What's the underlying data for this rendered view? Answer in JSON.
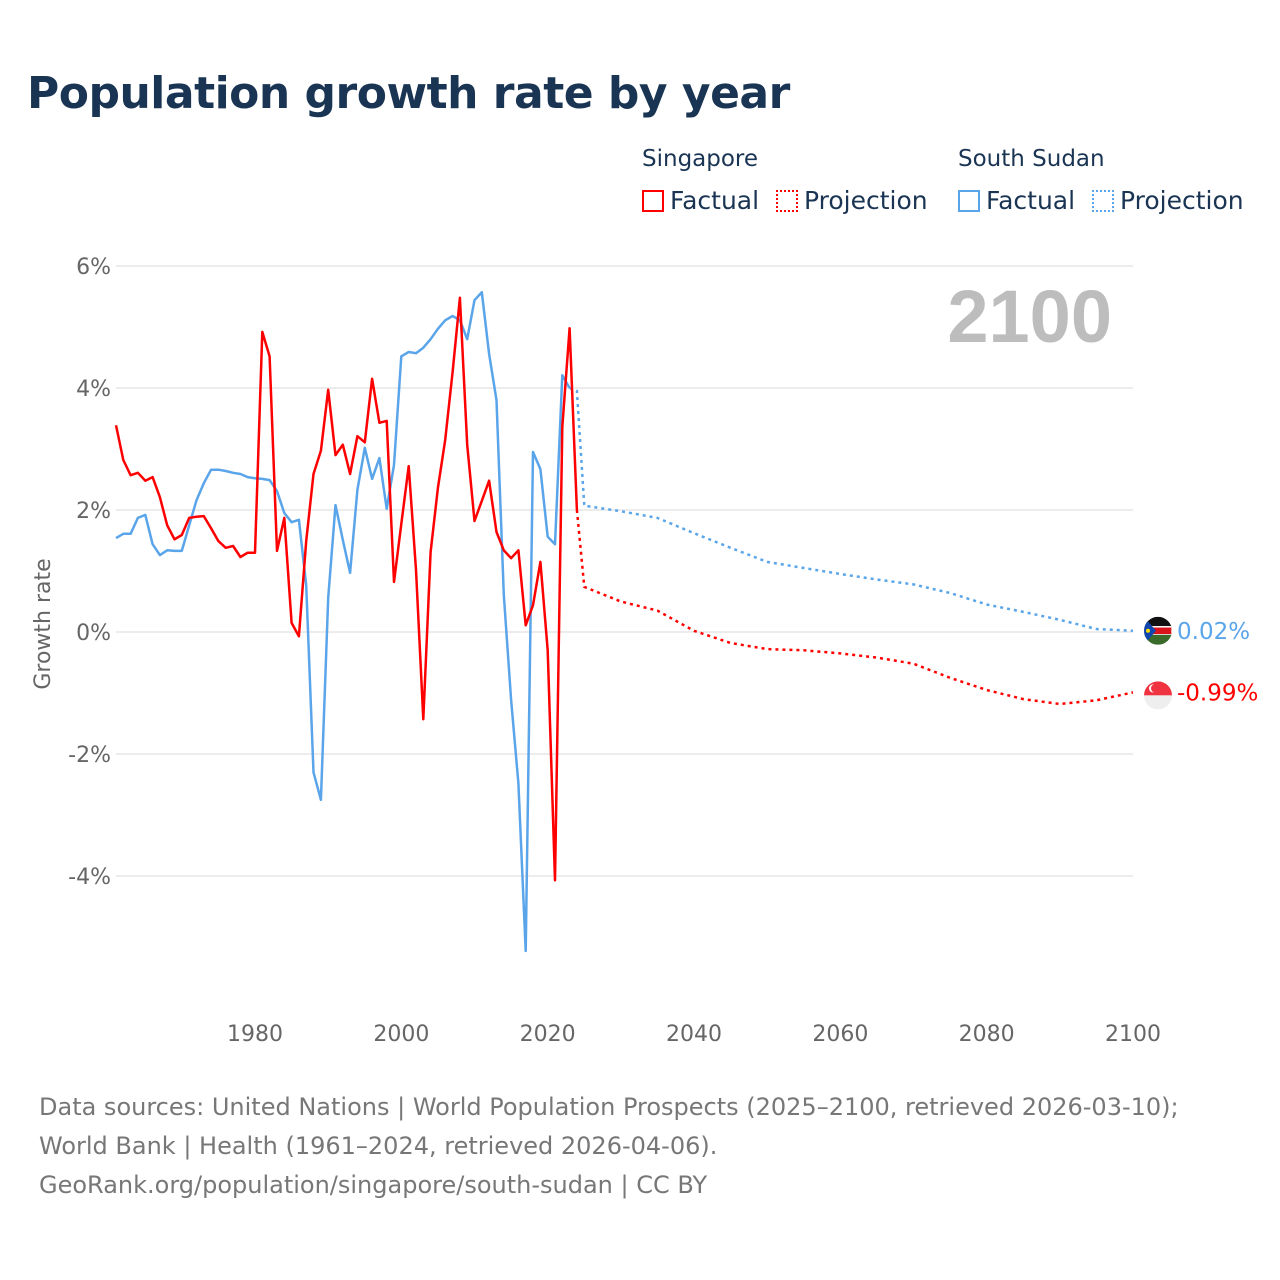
{
  "title": "Population growth rate by year",
  "legend": {
    "groups": [
      {
        "name": "Singapore",
        "color": "#ff0000",
        "factual": "Factual",
        "projection": "Projection"
      },
      {
        "name": "South Sudan",
        "color": "#5aa5ea",
        "factual": "Factual",
        "projection": "Projection"
      }
    ]
  },
  "year_display": "2100",
  "footer": {
    "sources": "Data sources: United Nations | World Population Prospects (2025–2100, retrieved 2026-03-10); World Bank | Health (1961–2024, retrieved 2026-04-06).",
    "link": "GeoRank.org/population/singapore/south-sudan | CC BY"
  },
  "chart_data": {
    "type": "line",
    "title": "Population growth rate by year",
    "xlabel": "",
    "ylabel": "Growth rate",
    "xlim": [
      1961,
      2100
    ],
    "ylim": [
      -5.9,
      6
    ],
    "yticks": [
      6,
      4,
      2,
      0,
      -2,
      -4
    ],
    "ytick_labels": [
      "6%",
      "4%",
      "2%",
      "0%",
      "-2%",
      "-4%"
    ],
    "xticks": [
      1980,
      2000,
      2020,
      2040,
      2060,
      2080,
      2100
    ],
    "xtick_labels": [
      "1980",
      "2000",
      "2020",
      "2040",
      "2060",
      "2080",
      "2100"
    ],
    "grid": true,
    "series": [
      {
        "name": "Singapore",
        "color": "#ff0000",
        "end_label": "-0.99%",
        "factual": {
          "x": [
            1961,
            1962,
            1963,
            1964,
            1965,
            1966,
            1967,
            1968,
            1969,
            1970,
            1971,
            1972,
            1973,
            1974,
            1975,
            1976,
            1977,
            1978,
            1979,
            1980,
            1981,
            1982,
            1983,
            1984,
            1985,
            1986,
            1987,
            1988,
            1989,
            1990,
            1991,
            1992,
            1993,
            1994,
            1995,
            1996,
            1997,
            1998,
            1999,
            2000,
            2001,
            2002,
            2003,
            2004,
            2005,
            2006,
            2007,
            2008,
            2009,
            2010,
            2011,
            2012,
            2013,
            2014,
            2015,
            2016,
            2017,
            2018,
            2019,
            2020,
            2021,
            2022,
            2023,
            2024
          ],
          "y": [
            3.39,
            2.82,
            2.57,
            2.61,
            2.48,
            2.54,
            2.21,
            1.75,
            1.52,
            1.59,
            1.87,
            1.89,
            1.9,
            1.7,
            1.49,
            1.38,
            1.41,
            1.23,
            1.3,
            1.3,
            4.92,
            4.52,
            1.33,
            1.87,
            0.15,
            -0.07,
            1.49,
            2.59,
            2.97,
            3.97,
            2.9,
            3.07,
            2.59,
            3.21,
            3.11,
            4.15,
            3.43,
            3.46,
            0.82,
            1.77,
            2.72,
            1.02,
            -1.43,
            1.31,
            2.36,
            3.15,
            4.26,
            5.48,
            3.07,
            1.82,
            2.15,
            2.48,
            1.64,
            1.34,
            1.21,
            1.34,
            0.11,
            0.44,
            1.15,
            -0.3,
            -4.07,
            3.36,
            4.98,
            2.0
          ]
        },
        "projection": {
          "x": [
            2024,
            2025,
            2030,
            2035,
            2040,
            2045,
            2050,
            2055,
            2060,
            2065,
            2070,
            2075,
            2080,
            2085,
            2090,
            2095,
            2100
          ],
          "y": [
            2.0,
            0.74,
            0.5,
            0.35,
            0.02,
            -0.18,
            -0.28,
            -0.3,
            -0.35,
            -0.42,
            -0.52,
            -0.75,
            -0.95,
            -1.1,
            -1.18,
            -1.12,
            -0.99
          ]
        }
      },
      {
        "name": "South Sudan",
        "color": "#5aa5ea",
        "end_label": "0.02%",
        "factual": {
          "x": [
            1961,
            1962,
            1963,
            1964,
            1965,
            1966,
            1967,
            1968,
            1969,
            1970,
            1971,
            1972,
            1973,
            1974,
            1975,
            1976,
            1977,
            1978,
            1979,
            1980,
            1981,
            1982,
            1983,
            1984,
            1985,
            1986,
            1987,
            1988,
            1989,
            1990,
            1991,
            1992,
            1993,
            1994,
            1995,
            1996,
            1997,
            1998,
            1999,
            2000,
            2001,
            2002,
            2003,
            2004,
            2005,
            2006,
            2007,
            2008,
            2009,
            2010,
            2011,
            2012,
            2013,
            2014,
            2015,
            2016,
            2017,
            2018,
            2019,
            2020,
            2021,
            2022,
            2023
          ],
          "y": [
            1.54,
            1.61,
            1.61,
            1.87,
            1.92,
            1.44,
            1.26,
            1.34,
            1.33,
            1.33,
            1.75,
            2.16,
            2.44,
            2.66,
            2.66,
            2.64,
            2.61,
            2.59,
            2.54,
            2.52,
            2.51,
            2.49,
            2.31,
            1.95,
            1.8,
            1.84,
            0.77,
            -2.3,
            -2.75,
            0.56,
            2.08,
            1.51,
            0.97,
            2.33,
            3.02,
            2.51,
            2.85,
            2.02,
            2.74,
            4.52,
            4.59,
            4.57,
            4.66,
            4.8,
            4.97,
            5.11,
            5.18,
            5.11,
            4.8,
            5.44,
            5.57,
            4.56,
            3.8,
            0.61,
            -1.11,
            -2.48,
            -5.23,
            2.95,
            2.67,
            1.56,
            1.44,
            4.21,
            4.0
          ]
        },
        "projection": {
          "x": [
            2023,
            2024,
            2025,
            2030,
            2035,
            2040,
            2045,
            2050,
            2055,
            2060,
            2065,
            2070,
            2075,
            2080,
            2085,
            2090,
            2095,
            2100
          ],
          "y": [
            4.0,
            3.95,
            2.07,
            1.98,
            1.87,
            1.62,
            1.38,
            1.15,
            1.05,
            0.95,
            0.86,
            0.78,
            0.64,
            0.45,
            0.33,
            0.2,
            0.05,
            0.02
          ]
        }
      }
    ]
  }
}
